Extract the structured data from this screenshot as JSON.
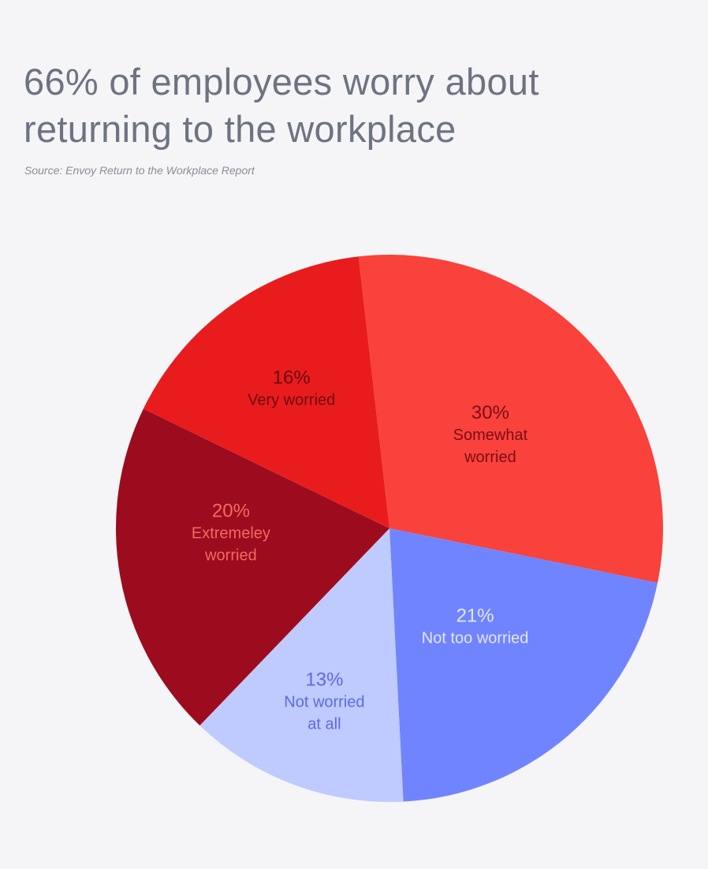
{
  "title": "66% of employees worry about returning to the workplace",
  "source": "Source: Envoy Return to the Workplace Report",
  "chart_data": {
    "type": "pie",
    "title": "66% of employees worry about returning to the workplace",
    "slices": [
      {
        "value": 30,
        "pct_label": "30%",
        "label_lines": [
          "Somewhat",
          "worried"
        ],
        "color": "#f8423b",
        "text_color": "#7d0c17"
      },
      {
        "value": 21,
        "pct_label": "21%",
        "label_lines": [
          "Not too worried"
        ],
        "color": "#7184ff",
        "text_color": "#e3e7ff"
      },
      {
        "value": 13,
        "pct_label": "13%",
        "label_lines": [
          "Not worried",
          "at all"
        ],
        "color": "#bfcaff",
        "text_color": "#5c6bdf"
      },
      {
        "value": 20,
        "pct_label": "20%",
        "label_lines": [
          "Extremeley",
          "worried"
        ],
        "color": "#9c0c1e",
        "text_color": "#f46a5f"
      },
      {
        "value": 16,
        "pct_label": "16%",
        "label_lines": [
          "Very worried"
        ],
        "color": "#e81c1d",
        "text_color": "#6d0a12"
      }
    ]
  }
}
